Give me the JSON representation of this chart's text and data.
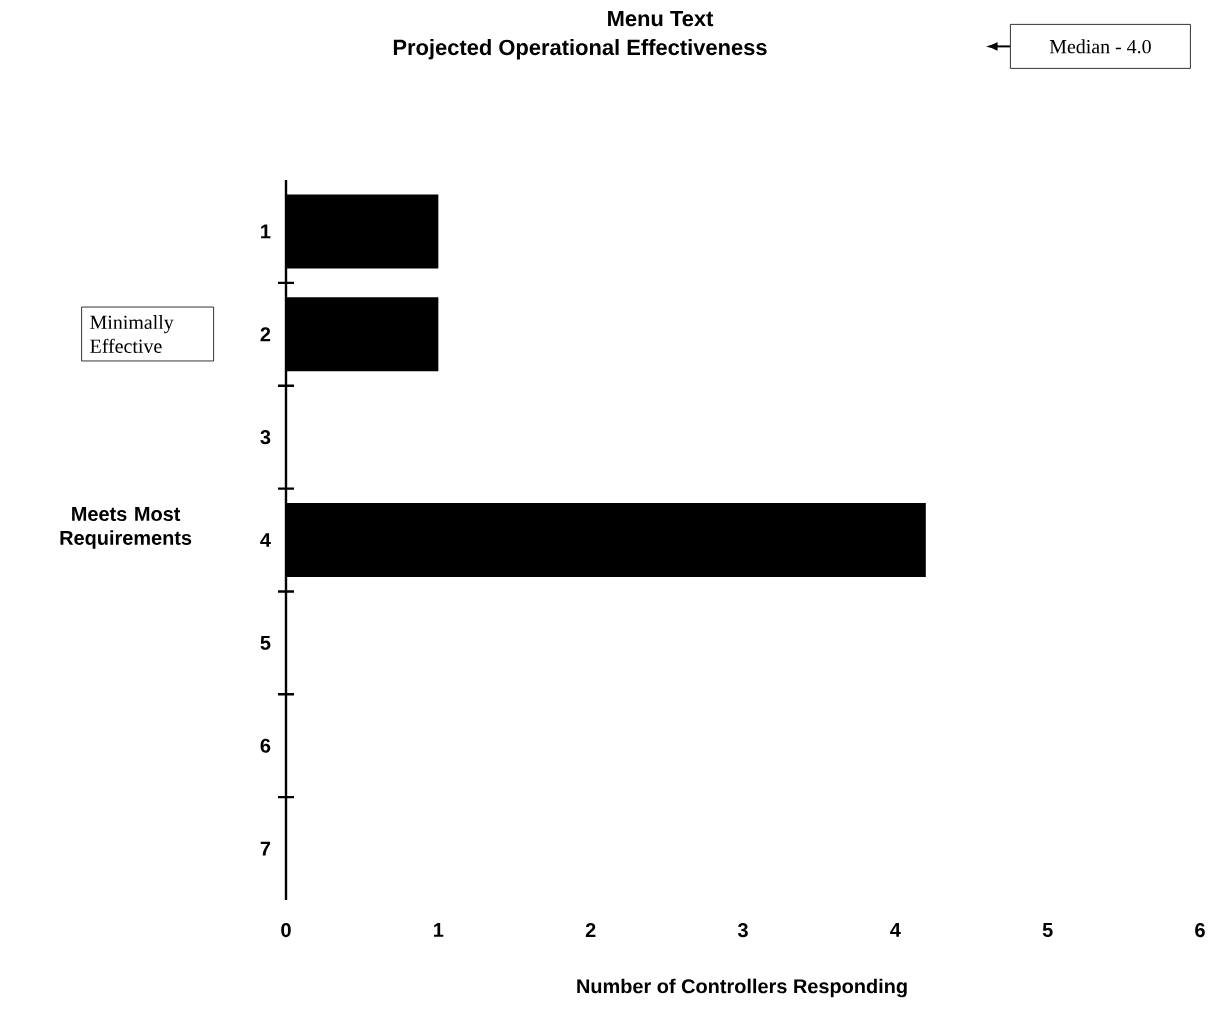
{
  "chart_data": {
    "type": "bar",
    "orientation": "horizontal",
    "title": "Menu Text",
    "subtitle": "Projected Operational Effectiveness",
    "categories": [
      "1",
      "2",
      "3",
      "4",
      "5",
      "6",
      "7"
    ],
    "values": [
      1,
      1,
      0,
      4.2,
      0,
      0,
      0
    ],
    "color": "#000000",
    "xlim": [
      0,
      6
    ],
    "xticks": [
      0,
      1,
      2,
      3,
      4,
      5,
      6
    ],
    "xlabel": "Number of Controllers Responding",
    "annotations": [
      "Median - 4.0",
      "Minimally Effective",
      "Meets Most Requirements"
    ],
    "grid": false
  }
}
